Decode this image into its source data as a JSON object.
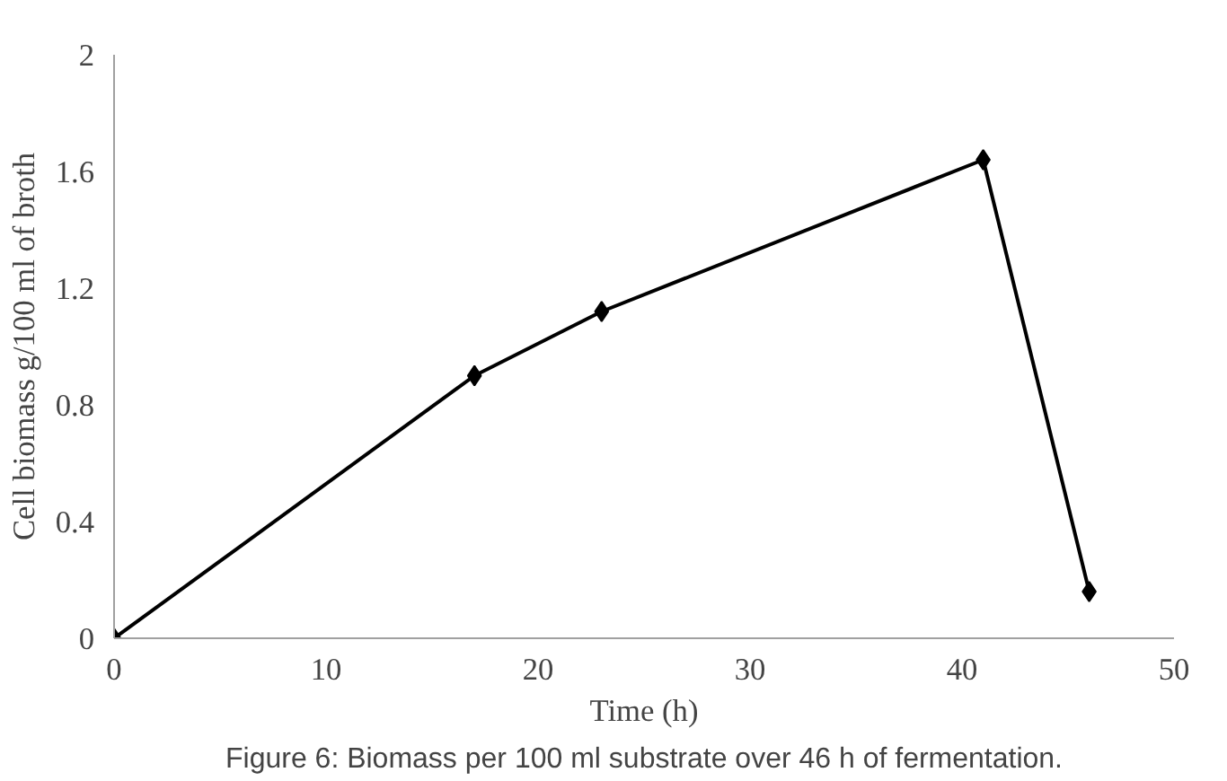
{
  "chart_data": {
    "type": "line",
    "xlabel": "Time (h)",
    "ylabel": "Cell biomass g/100 ml of broth",
    "x": [
      0,
      17,
      23,
      41,
      46
    ],
    "series": [
      {
        "color": "#000000",
        "values": [
          0,
          0.9,
          1.12,
          1.64,
          0.16
        ]
      }
    ],
    "xlim": [
      0,
      50
    ],
    "xticks": [
      0,
      10,
      20,
      30,
      40,
      50
    ],
    "ylim": [
      0,
      2
    ],
    "yticks": [
      0,
      0.4,
      0.8,
      1.2,
      1.6,
      2
    ],
    "marker": "diamond",
    "grid": false,
    "annotations": [
      "Figure 6: Biomass per 100 ml substrate over 46 h of fermentation."
    ]
  }
}
